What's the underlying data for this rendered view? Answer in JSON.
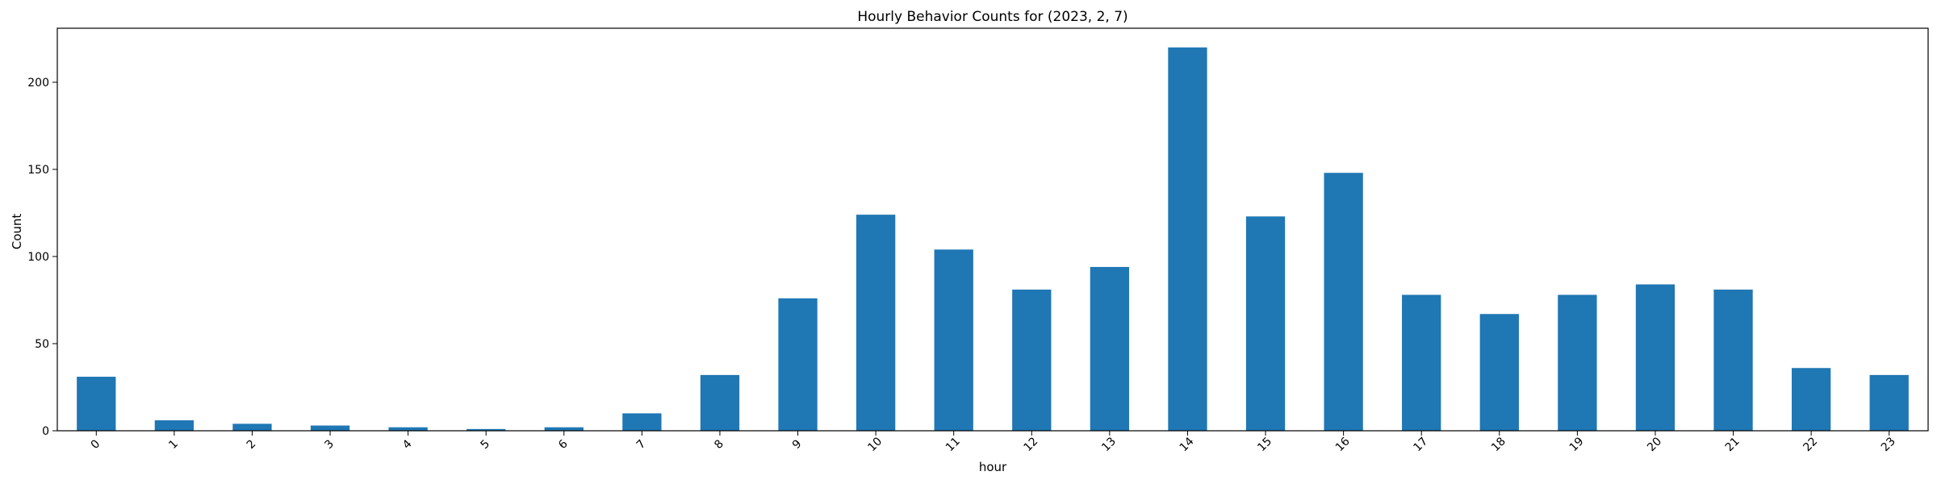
{
  "chart_data": {
    "type": "bar",
    "title": "Hourly Behavior Counts for (2023, 2, 7)",
    "xlabel": "hour",
    "ylabel": "Count",
    "categories": [
      "0",
      "1",
      "2",
      "3",
      "4",
      "5",
      "6",
      "7",
      "8",
      "9",
      "10",
      "11",
      "12",
      "13",
      "14",
      "15",
      "16",
      "17",
      "18",
      "19",
      "20",
      "21",
      "22",
      "23"
    ],
    "values": [
      31,
      6,
      4,
      3,
      2,
      1,
      2,
      10,
      32,
      76,
      124,
      104,
      81,
      94,
      220,
      123,
      148,
      78,
      67,
      78,
      84,
      81,
      36,
      32
    ],
    "ylim": [
      0,
      231
    ],
    "yticks": [
      0,
      50,
      100,
      150,
      200
    ],
    "grid": false,
    "legend": "none",
    "bar_color": "#1f77b4",
    "xtick_rotation": "45deg"
  }
}
